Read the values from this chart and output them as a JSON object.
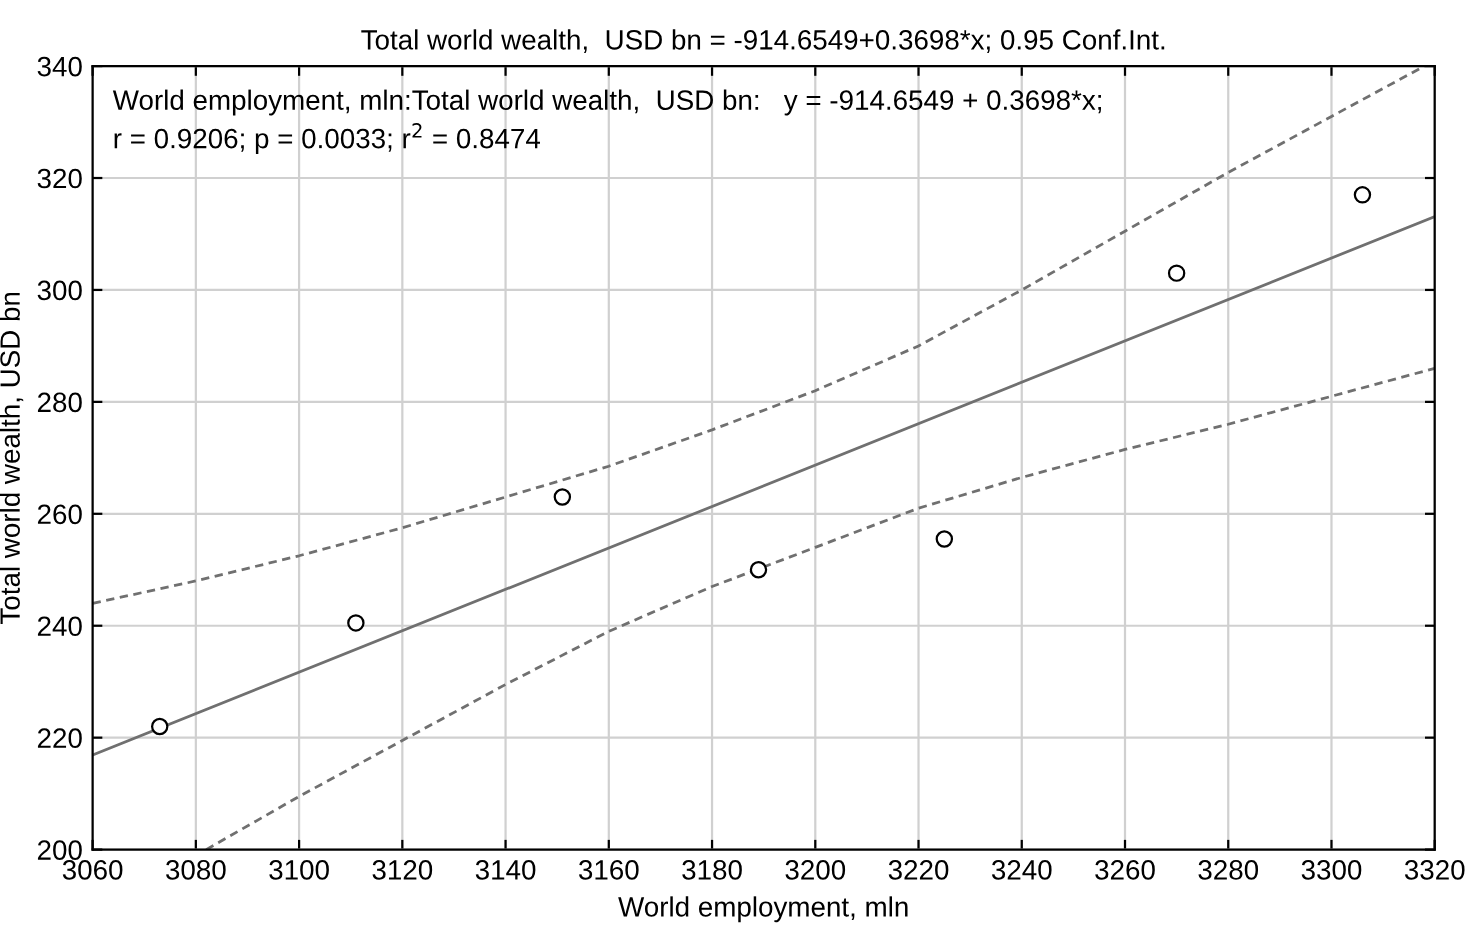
{
  "chart_data": {
    "type": "scatter",
    "title": "Total world wealth,  USD bn = -914.6549+0.3698*x; 0.95 Conf.Int.",
    "xlabel": "World employment, mln",
    "ylabel": "Total world wealth, USD bn",
    "annotations": [
      "World employment, mln:Total world wealth,  USD bn:   y = -914.6549 + 0.3698*x;\nr = 0.9206; p = 0.0033; r$^{2}$ = 0.8474"
    ],
    "series": [
      {
        "color": "#000000",
        "marker": "circle",
        "x": [
          3073,
          3111,
          3151,
          3189,
          3225,
          3270,
          3306
        ],
        "values": [
          222,
          240.5,
          263,
          250,
          255.5,
          303,
          317
        ]
      },
      {
        "type": "line",
        "color": "#707070",
        "line_style": "solid",
        "x": [
          3060,
          3320
        ],
        "values": [
          216.9,
          313.1
        ]
      },
      {
        "type": "line",
        "color": "#707070",
        "line_style": "dashed",
        "x": [
          3060,
          3080,
          3100,
          3120,
          3140,
          3160,
          3180,
          3200,
          3220,
          3240,
          3260,
          3280,
          3300,
          3318
        ],
        "values": [
          244,
          248,
          252.5,
          257.5,
          263,
          268.5,
          275,
          282,
          290,
          300,
          310.5,
          321,
          331,
          340
        ]
      },
      {
        "type": "line",
        "color": "#707070",
        "line_style": "dashed",
        "x": [
          3082,
          3100,
          3120,
          3140,
          3160,
          3180,
          3200,
          3220,
          3240,
          3260,
          3280,
          3300,
          3320
        ],
        "values": [
          200,
          209.5,
          219.5,
          229.5,
          239,
          247,
          254,
          261,
          266.5,
          271.5,
          276,
          281,
          286
        ]
      }
    ],
    "xlim": [
      3060,
      3320
    ],
    "xticks": [
      3060,
      3080,
      3100,
      3120,
      3140,
      3160,
      3180,
      3200,
      3220,
      3240,
      3260,
      3280,
      3300,
      3320
    ],
    "ylim": [
      200,
      340
    ],
    "yticks": [
      200,
      220,
      240,
      260,
      280,
      300,
      320,
      340
    ],
    "grid": true
  }
}
